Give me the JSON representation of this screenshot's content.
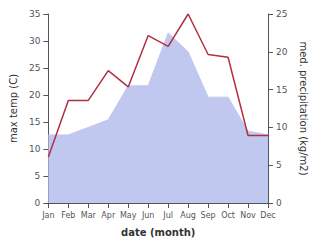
{
  "chart_data": {
    "type": "line",
    "xlabel": "date (month)",
    "ylabel": "max temp (C)",
    "y2label": "med. precipitation (kg/m2)",
    "categories": [
      "Jan",
      "Feb",
      "Mar",
      "Apr",
      "May",
      "Jun",
      "Jul",
      "Aug",
      "Sep",
      "Oct",
      "Nov",
      "Dec"
    ],
    "series": [
      {
        "type": "area",
        "color": "#c0c8f0",
        "axis": "y2",
        "values": [
          9.0,
          9.0,
          10.0,
          11.0,
          15.5,
          15.5,
          22.5,
          20.0,
          14.0,
          14.0,
          9.5,
          9.0
        ]
      },
      {
        "type": "line",
        "color": "#b03040",
        "values": [
          8.5,
          19.0,
          19.0,
          24.5,
          21.5,
          31.0,
          29.0,
          35.0,
          27.5,
          27.0,
          12.5,
          12.5
        ]
      }
    ],
    "ylim": [
      0,
      35
    ],
    "yticks": [
      0,
      5,
      10,
      15,
      20,
      25,
      30,
      35
    ],
    "y2lim": [
      0,
      25
    ],
    "y2ticks": [
      0,
      5,
      10,
      15,
      20,
      25
    ],
    "grid": false
  }
}
